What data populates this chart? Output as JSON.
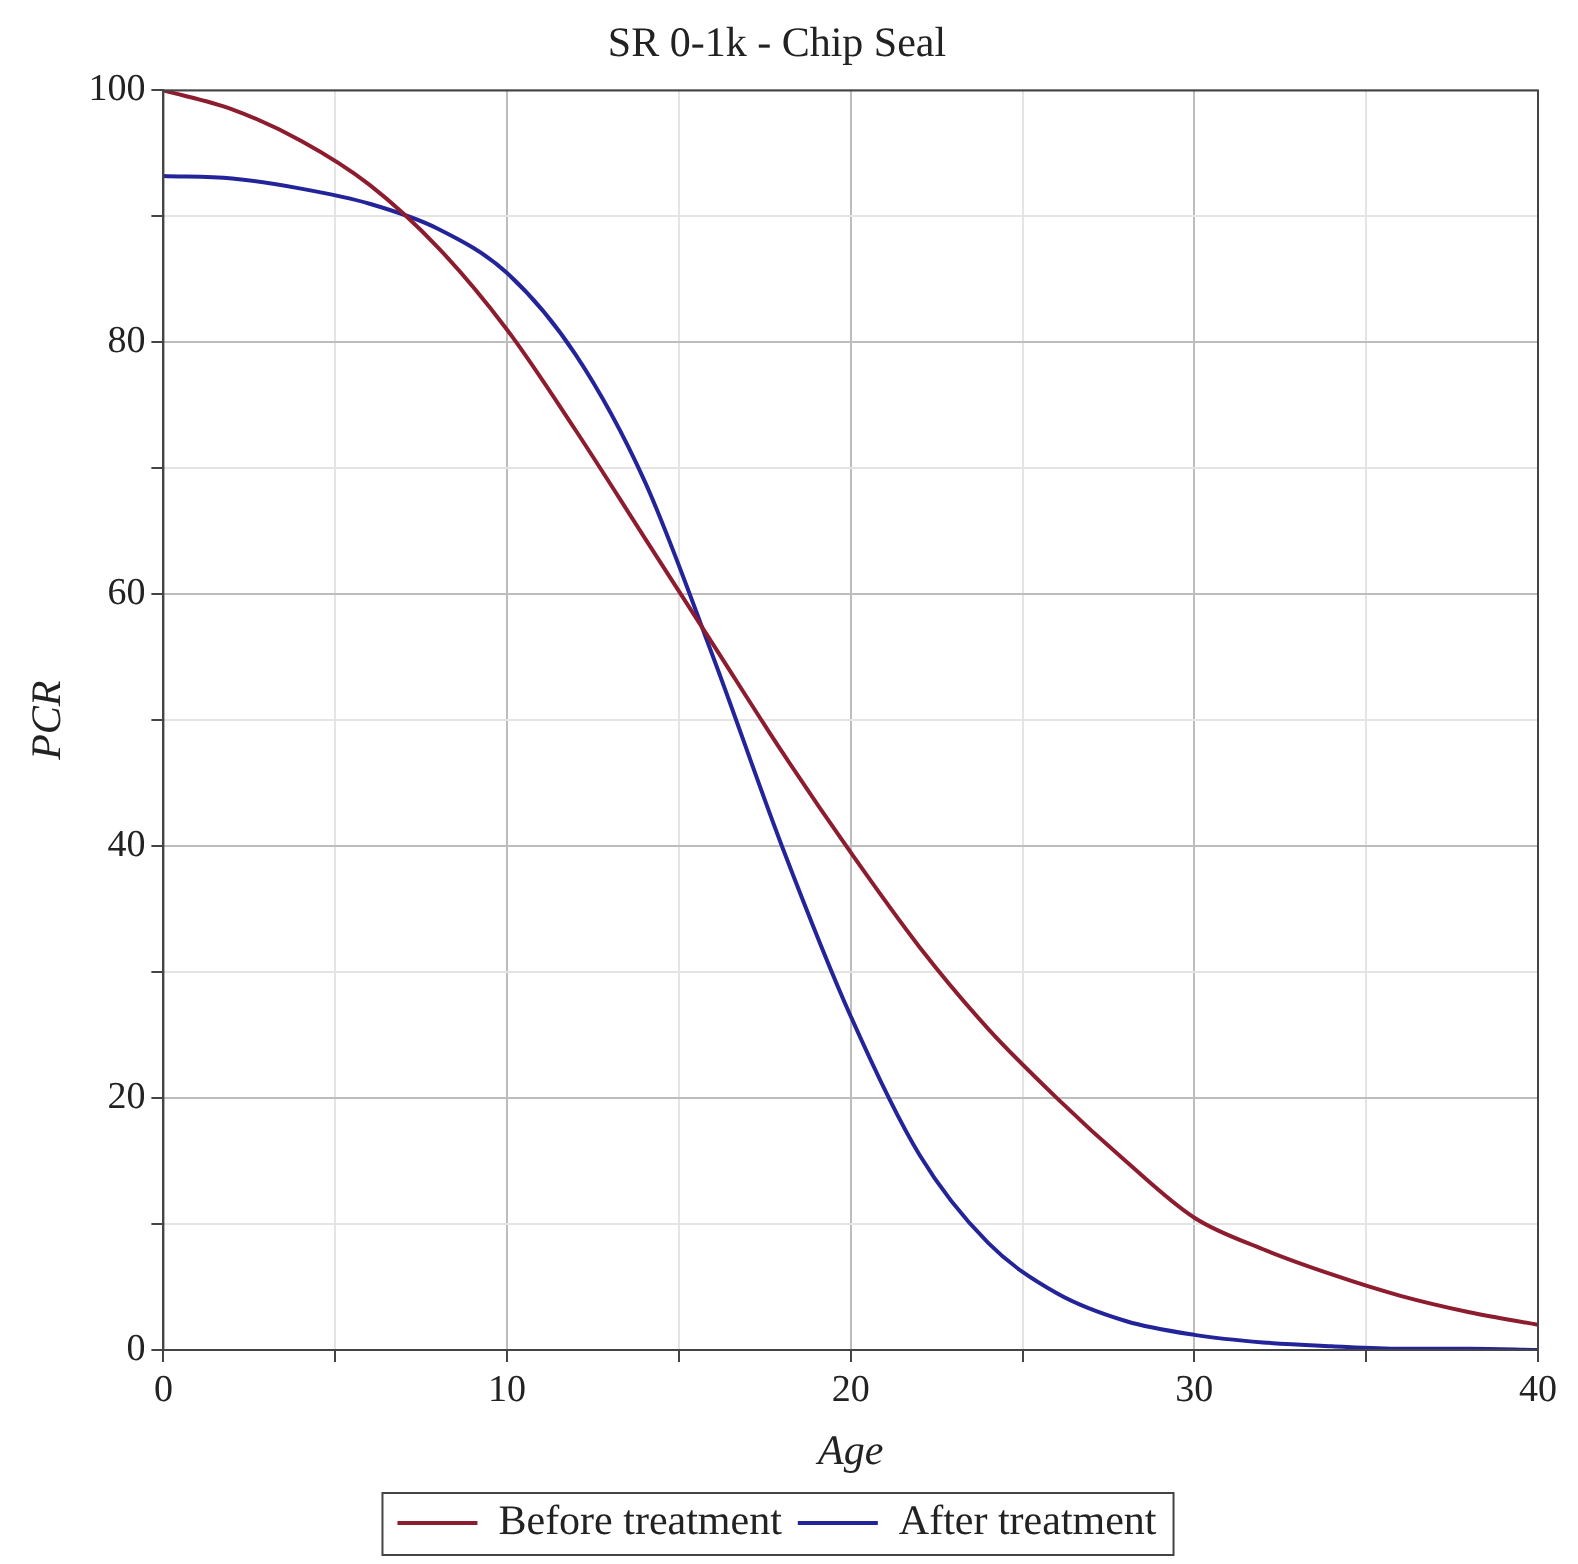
{
  "chart_data": {
    "type": "line",
    "title": "SR 0-1k - Chip Seal",
    "xlabel": "Age",
    "ylabel": "PCR",
    "xlim": [
      0,
      40
    ],
    "ylim": [
      0,
      100
    ],
    "xticks": [
      0,
      {
        "value": 5,
        "label": null
      },
      10,
      {
        "value": 15,
        "label": null
      },
      20,
      {
        "value": 25,
        "label": null
      },
      30,
      {
        "value": 35,
        "label": null
      },
      40
    ],
    "yticks": [
      0,
      {
        "value": 10,
        "label": null
      },
      20,
      {
        "value": 30,
        "label": null
      },
      40,
      {
        "value": 50,
        "label": null
      },
      60,
      {
        "value": 70,
        "label": null
      },
      80,
      {
        "value": 90,
        "label": null
      },
      100
    ],
    "grid": true,
    "legend": "bottom",
    "marker": "none",
    "line_style": "solid",
    "series": [
      {
        "name": "Before treatment",
        "color": "#8c1c2e",
        "x": [
          0,
          2,
          4,
          6,
          8,
          10,
          12,
          14,
          16,
          18,
          20,
          22,
          24,
          26,
          28,
          30,
          32,
          34,
          36,
          38,
          40
        ],
        "values": [
          100,
          98.5,
          96,
          92.5,
          87.5,
          81,
          73,
          64.5,
          56,
          47.5,
          39.5,
          32,
          25.5,
          20,
          15,
          10.5,
          8,
          6,
          4.3,
          3,
          2
        ]
      },
      {
        "name": "After treatment",
        "color": "#24249a",
        "x": [
          0,
          2,
          4,
          6,
          8,
          10,
          12,
          14,
          16,
          18,
          20,
          22,
          24,
          26,
          28,
          30,
          32,
          34,
          36,
          38,
          40
        ],
        "values": [
          93.2,
          93,
          92.2,
          91,
          89,
          85.5,
          79,
          69,
          55,
          40,
          26.5,
          15.5,
          8.5,
          4.5,
          2.3,
          1.2,
          0.6,
          0.3,
          0.1,
          0.1,
          0
        ]
      }
    ]
  }
}
